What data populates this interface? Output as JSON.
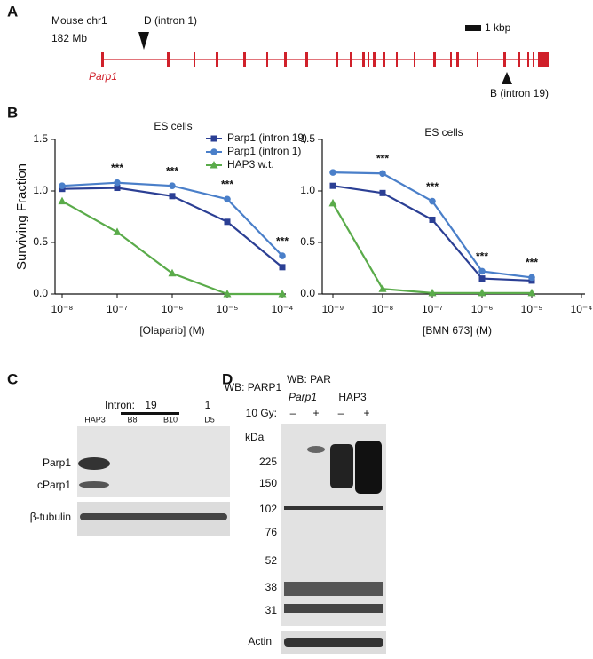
{
  "panels": [
    "A",
    "B",
    "C",
    "D"
  ],
  "gene_map": {
    "chromosome": "Mouse chr1",
    "position": "182 Mb",
    "gene": "Parp1",
    "site_d": "D (intron 1)",
    "site_b": "B (intron 19)",
    "scale": "1 kbp"
  },
  "chart_data": [
    {
      "type": "line",
      "title": "ES cells",
      "xlabel": "[Olaparib] (M)",
      "ylabel": "Surviving Fraction",
      "log_x": true,
      "legend": "upper right",
      "x": [
        1e-08,
        1e-07,
        1e-06,
        1e-05,
        0.0001
      ],
      "series": [
        {
          "name": "Parp1 (intron 19)",
          "color": "#2b3f94",
          "marker": "square",
          "values": [
            1.02,
            1.03,
            0.95,
            0.7,
            0.26
          ]
        },
        {
          "name": "Parp1 (intron 1)",
          "color": "#4a7fc9",
          "marker": "circle",
          "values": [
            1.05,
            1.08,
            1.05,
            0.92,
            0.37
          ]
        },
        {
          "name": "HAP3 w.t.",
          "color": "#5aab4a",
          "marker": "triangle",
          "values": [
            0.9,
            0.6,
            0.2,
            0.0,
            0.0
          ]
        }
      ],
      "significance": [
        null,
        "***",
        "***",
        "***",
        "***"
      ],
      "xlim": [
        1e-08,
        0.0001
      ],
      "xticks": [
        {
          "value": 1e-08,
          "label": "10⁻⁸"
        },
        {
          "value": 1e-07,
          "label": "10⁻⁷"
        },
        {
          "value": 1e-06,
          "label": "10⁻⁶"
        },
        {
          "value": 1e-05,
          "label": "10⁻⁵"
        },
        {
          "value": 0.0001,
          "label": "10⁻⁴"
        }
      ],
      "ylim": [
        0,
        1.5
      ],
      "yticks": [
        {
          "value": 0,
          "label": "0.0"
        },
        0.5,
        {
          "value": 1,
          "label": "1.0"
        },
        1.5
      ]
    },
    {
      "type": "line",
      "title": "ES cells",
      "xlabel": "[BMN 673] (M)",
      "log_x": true,
      "x": [
        1e-09,
        1e-08,
        1e-07,
        1e-06,
        1e-05
      ],
      "series": [
        {
          "name": "Parp1 (intron 19)",
          "color": "#2b3f94",
          "marker": "square",
          "values": [
            1.05,
            0.98,
            0.72,
            0.15,
            0.13
          ]
        },
        {
          "name": "Parp1 (intron 1)",
          "color": "#4a7fc9",
          "marker": "circle",
          "values": [
            1.18,
            1.17,
            0.9,
            0.22,
            0.16
          ]
        },
        {
          "name": "HAP3 w.t.",
          "color": "#5aab4a",
          "marker": "triangle",
          "values": [
            0.88,
            0.05,
            0.01,
            0.01,
            0.01
          ]
        }
      ],
      "significance": [
        null,
        "***",
        "***",
        "***",
        "***"
      ],
      "xlim": [
        1e-09,
        0.0001
      ],
      "xticks": [
        {
          "value": 1e-09,
          "label": "10⁻⁹"
        },
        {
          "value": 1e-08,
          "label": "10⁻⁸"
        },
        {
          "value": 1e-07,
          "label": "10⁻⁷"
        },
        {
          "value": 1e-06,
          "label": "10⁻⁶"
        },
        {
          "value": 1e-05,
          "label": "10⁻⁵"
        },
        {
          "value": 0.0001,
          "label": "10⁻⁴"
        }
      ],
      "ylim": [
        0,
        1.5
      ],
      "yticks": [
        {
          "value": 0,
          "label": "0.0"
        },
        0.5,
        {
          "value": 1,
          "label": "1.0"
        },
        1.5
      ]
    }
  ],
  "blot_c": {
    "title": "WB: PARP1",
    "intron_label": "Intron:",
    "introns": [
      "19",
      "1"
    ],
    "lanes": [
      "HAP3",
      "B8",
      "B10",
      "D5"
    ],
    "bands": [
      "Parp1",
      "cParp1"
    ],
    "loading": "β-tubulin"
  },
  "blot_d": {
    "title": "WB: PAR",
    "groups": [
      "Parp1",
      "HAP3"
    ],
    "treatment": "10 Gy:",
    "lanes": [
      "–",
      "+",
      "–",
      "+"
    ],
    "unit": "kDa",
    "markers": [
      "225",
      "150",
      "102",
      "76",
      "52",
      "38",
      "31"
    ],
    "loading": "Actin"
  }
}
